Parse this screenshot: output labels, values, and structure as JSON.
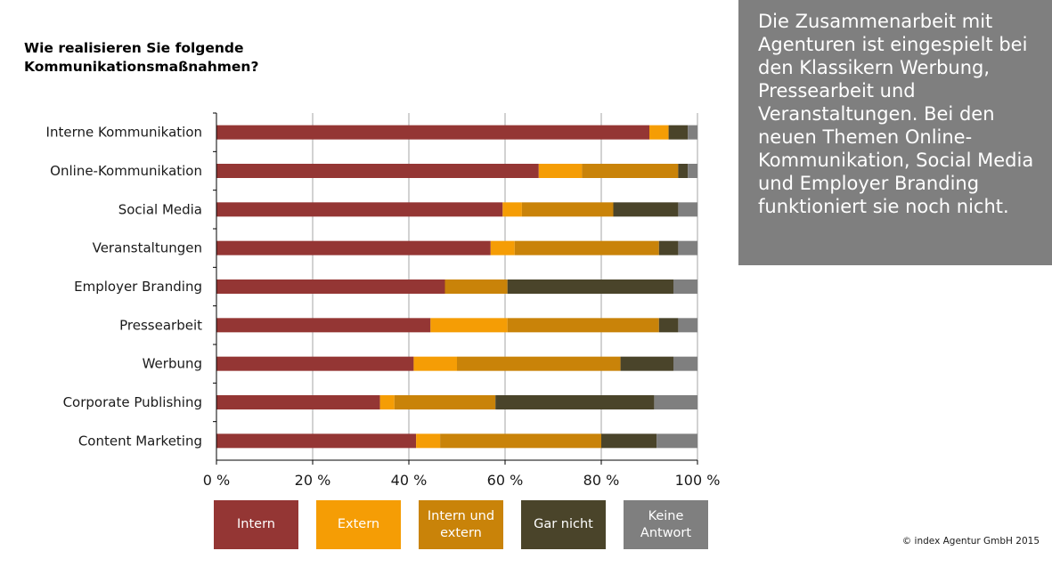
{
  "title_lines": [
    "Wie realisieren Sie folgende",
    "Kommunikationsmaßnahmen?"
  ],
  "callout_text": "Die Zusammenarbeit mit Agenturen ist eingespielt bei den Klassikern Werbung, Pressearbeit und Veranstaltungen. Bei den neuen Themen Online-Kommunikation, Social Media und Employer Branding funktioniert sie noch nicht.",
  "copyright": "© index Agentur GmbH 2015",
  "colors": {
    "intern": "#943634",
    "extern": "#f59d05",
    "intern_und_extern": "#c98309",
    "gar_nicht": "#4a442a",
    "keine_antwort": "#7f7f7f",
    "axis": "#000000",
    "grid": "#a6a6a6"
  },
  "chart_data": {
    "type": "bar",
    "orientation": "horizontal",
    "stacked": true,
    "percent_stacked": true,
    "xlim": [
      0,
      100
    ],
    "x_ticks": [
      "0 %",
      "20 %",
      "40 %",
      "60 %",
      "80 %",
      "100 %"
    ],
    "x_tick_values": [
      0,
      20,
      40,
      60,
      80,
      100
    ],
    "grid": true,
    "legend_position": "bottom",
    "categories": [
      "Interne Kommunikation",
      "Online-Kommunikation",
      "Social Media",
      "Veranstaltungen",
      "Employer Branding",
      "Pressearbeit",
      "Werbung",
      "Corporate Publishing",
      "Content Marketing"
    ],
    "series": [
      {
        "name": "Intern",
        "color_key": "intern",
        "values": [
          90,
          67,
          59.5,
          57,
          47.5,
          44.5,
          41,
          34,
          41.5
        ]
      },
      {
        "name": "Extern",
        "color_key": "extern",
        "values": [
          4,
          9,
          4,
          5,
          0,
          16,
          9,
          3,
          5
        ]
      },
      {
        "name": "Intern und extern",
        "color_key": "intern_und_extern",
        "values": [
          0,
          20,
          19,
          30,
          13,
          31.5,
          34,
          21,
          33.5
        ]
      },
      {
        "name": "Gar nicht",
        "color_key": "gar_nicht",
        "values": [
          4,
          2,
          13.5,
          4,
          34.5,
          4,
          11,
          33,
          11.5
        ]
      },
      {
        "name": "Keine Antwort",
        "color_key": "keine_antwort",
        "values": [
          2,
          2,
          4,
          4,
          5,
          4,
          5,
          9,
          8.5
        ]
      }
    ]
  }
}
